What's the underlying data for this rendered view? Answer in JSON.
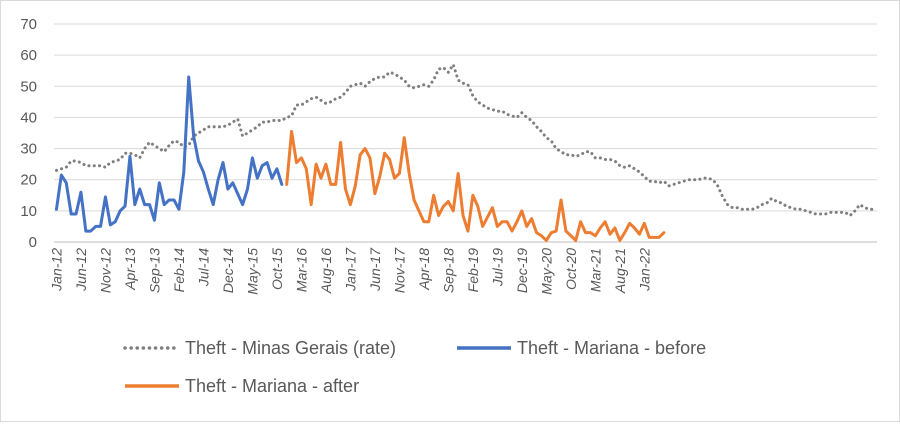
{
  "chart_data": {
    "type": "line",
    "title": "",
    "xlabel": "",
    "ylabel": "",
    "ylim": [
      0,
      70
    ],
    "yticks": [
      0,
      10,
      20,
      30,
      40,
      50,
      60,
      70
    ],
    "grid": true,
    "legend_position": "bottom",
    "x_start": "Jan-12",
    "x_tick_labels": [
      "Jan-12",
      "Jun-12",
      "Nov-12",
      "Apr-13",
      "Sep-13",
      "Feb-14",
      "Jul-14",
      "Dec-14",
      "May-15",
      "Oct-15",
      "Mar-16",
      "Aug-16",
      "Jan-17",
      "Jun-17",
      "Nov-17",
      "Apr-18",
      "Sep-18",
      "Feb-19",
      "Jul-19",
      "Dec-19",
      "May-20",
      "Oct-20",
      "Mar-21",
      "Aug-21",
      "Jan-22"
    ],
    "series": [
      {
        "name": "Theft - Minas Gerais (rate)",
        "color": "#7f7f7f",
        "style": "dotted",
        "start_index": 0,
        "values": [
          23,
          23.5,
          24,
          26,
          26,
          25.5,
          24.5,
          24.5,
          24.5,
          24.5,
          24,
          25.5,
          26,
          26.5,
          28.5,
          28.5,
          28,
          27,
          30,
          32,
          31,
          30,
          29,
          31,
          32.5,
          32,
          30.5,
          31,
          34,
          35,
          36,
          37,
          37,
          37,
          37,
          37.5,
          38.5,
          39.5,
          34,
          35,
          36,
          37,
          38.5,
          38.5,
          39,
          39,
          39,
          40,
          40.5,
          44,
          44,
          45,
          46,
          46.5,
          45.5,
          44.5,
          45,
          46,
          46.5,
          48,
          50,
          50.5,
          51,
          50,
          51.5,
          52.5,
          53,
          53,
          54.5,
          54,
          53,
          52,
          50,
          49.5,
          50,
          50.5,
          50,
          52,
          55.5,
          56,
          54.5,
          57,
          52,
          51,
          50.5,
          47,
          45,
          44,
          43,
          42.5,
          42,
          42,
          41,
          40.5,
          40,
          41.5,
          40,
          39,
          37,
          35.5,
          33.5,
          32.5,
          30,
          29,
          28,
          28,
          27.5,
          28,
          29,
          29,
          27,
          27,
          26.5,
          26.5,
          26,
          24.5,
          24,
          24.5,
          23.5,
          22.5,
          21,
          19.5,
          19.5,
          19,
          19.5,
          18,
          18.5,
          19,
          19.5,
          20,
          20,
          20,
          20.5,
          20.5,
          20,
          18,
          14.5,
          12,
          11,
          11,
          10.5,
          10.5,
          10.5,
          11,
          12,
          12.5,
          14,
          13,
          12.5,
          11.5,
          11,
          10.5,
          10.5,
          10,
          9.5,
          9,
          9,
          9,
          9.5,
          9.5,
          9.5,
          9.5,
          8.5,
          10,
          12,
          11,
          10.5,
          10.5
        ]
      },
      {
        "name": "Theft - Mariana - before",
        "color": "#4472c4",
        "style": "solid",
        "start_index": 0,
        "values": [
          10.5,
          21.5,
          19,
          9,
          9,
          16,
          3.5,
          3.5,
          5,
          5,
          14.5,
          5.5,
          6.5,
          10,
          11.5,
          27.5,
          12,
          17,
          12,
          12,
          7,
          19,
          12,
          13.5,
          13.5,
          10.5,
          22.5,
          53,
          34,
          26,
          22.5,
          17,
          12,
          20,
          25.5,
          17,
          19,
          15.5,
          12,
          17,
          27,
          20.5,
          24.5,
          25.5,
          20.5,
          23.5,
          18.5
        ]
      },
      {
        "name": "Theft - Mariana - after",
        "color": "#ed7d31",
        "style": "solid",
        "start_index": 47,
        "values": [
          18.5,
          35.5,
          25.5,
          27,
          23.5,
          12,
          25,
          20.5,
          25,
          18.5,
          18.5,
          32,
          17,
          12,
          18,
          28,
          30,
          27,
          15.5,
          21,
          28.5,
          26.5,
          20.5,
          22,
          33.5,
          22,
          13.5,
          10,
          6.5,
          6.5,
          15,
          8.5,
          11.5,
          13,
          10,
          22,
          8.5,
          3.5,
          15,
          11.5,
          5,
          8,
          11,
          5,
          6.5,
          6.5,
          3.5,
          6.5,
          10,
          5,
          7.5,
          3,
          2,
          0.5,
          3,
          3.5,
          13.5,
          3.5,
          2,
          0.5,
          6.5,
          3,
          3,
          2,
          4.5,
          6.5,
          2.5,
          4.5,
          0.5,
          3,
          6,
          4.5,
          2.5,
          6,
          1.5,
          1.5,
          1.5,
          3
        ]
      }
    ]
  }
}
